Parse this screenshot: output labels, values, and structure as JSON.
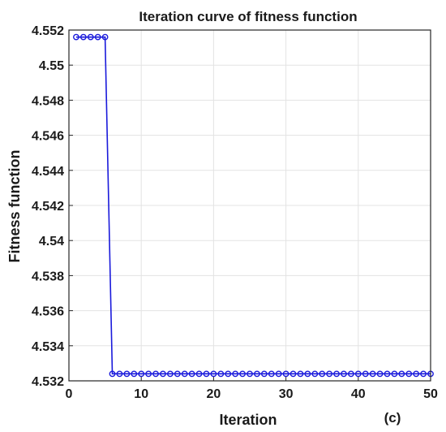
{
  "chart_data": {
    "type": "line",
    "title": "Iteration curve of fitness function",
    "xlabel": "Iteration",
    "ylabel": "Fitness function",
    "panel_label": "(c)",
    "xlim": [
      0,
      50
    ],
    "ylim": [
      4.532,
      4.552
    ],
    "x_ticks": [
      0,
      10,
      20,
      30,
      40,
      50
    ],
    "y_ticks": [
      4.532,
      4.534,
      4.536,
      4.538,
      4.54,
      4.542,
      4.544,
      4.546,
      4.548,
      4.55,
      4.552
    ],
    "y_tick_labels": [
      "4.532",
      "4.534",
      "4.536",
      "4.538",
      "4.54",
      "4.542",
      "4.544",
      "4.546",
      "4.548",
      "4.55",
      "4.552"
    ],
    "x_tick_labels": [
      "0",
      "10",
      "20",
      "30",
      "40",
      "50"
    ],
    "grid": true,
    "series": [
      {
        "color": "#1a1adb",
        "marker": "circle",
        "x": [
          1,
          2,
          3,
          4,
          5,
          6,
          7,
          8,
          9,
          10,
          11,
          12,
          13,
          14,
          15,
          16,
          17,
          18,
          19,
          20,
          21,
          22,
          23,
          24,
          25,
          26,
          27,
          28,
          29,
          30,
          31,
          32,
          33,
          34,
          35,
          36,
          37,
          38,
          39,
          40,
          41,
          42,
          43,
          44,
          45,
          46,
          47,
          48,
          49,
          50
        ],
        "y": [
          4.5516,
          4.5516,
          4.5516,
          4.5516,
          4.5516,
          4.5324,
          4.5324,
          4.5324,
          4.5324,
          4.5324,
          4.5324,
          4.5324,
          4.5324,
          4.5324,
          4.5324,
          4.5324,
          4.5324,
          4.5324,
          4.5324,
          4.5324,
          4.5324,
          4.5324,
          4.5324,
          4.5324,
          4.5324,
          4.5324,
          4.5324,
          4.5324,
          4.5324,
          4.5324,
          4.5324,
          4.5324,
          4.5324,
          4.5324,
          4.5324,
          4.5324,
          4.5324,
          4.5324,
          4.5324,
          4.5324,
          4.5324,
          4.5324,
          4.5324,
          4.5324,
          4.5324,
          4.5324,
          4.5324,
          4.5324,
          4.5324,
          4.5324
        ]
      }
    ]
  }
}
